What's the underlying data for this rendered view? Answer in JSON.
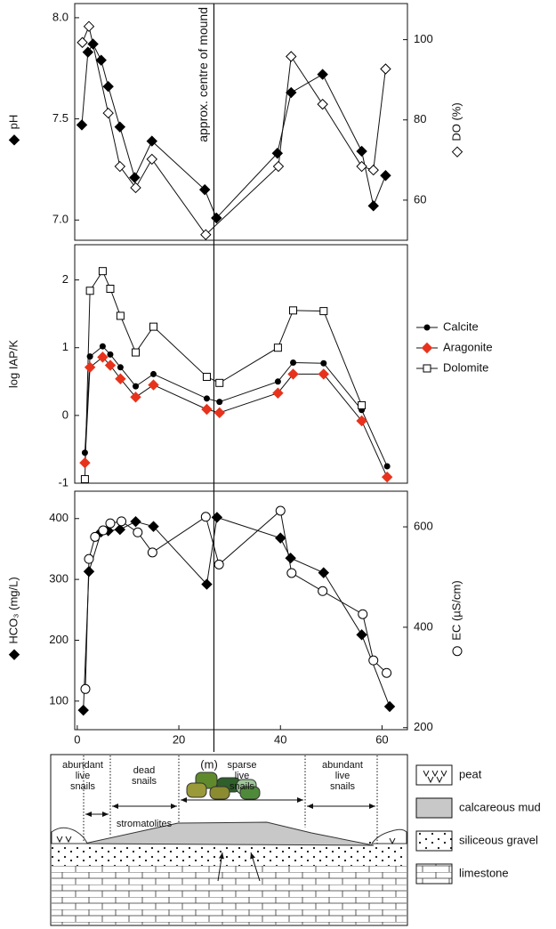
{
  "chart_data": [
    {
      "type": "line",
      "xlim": [
        -0.5,
        65
      ],
      "ylim": [
        6.9,
        8.07
      ],
      "yticks": [
        {
          "value": 7.0,
          "label": "7.0"
        },
        7.5,
        {
          "value": 8.0,
          "label": "8.0"
        }
      ],
      "y2lim": [
        50,
        109
      ],
      "y2ticks": [
        60,
        80,
        100
      ],
      "ylabel": "pH",
      "y2label": "DO (%)",
      "annotation": {
        "text": "approx. centre of mound",
        "x": 26.9
      },
      "series": [
        {
          "marker": "diamond",
          "color": "#000000",
          "axis": "y",
          "x": [
            0.9,
            2.1,
            3.1,
            4.7,
            6.1,
            8.4,
            11.3,
            14.7,
            25.1,
            27.4,
            39.4,
            42.1,
            48.3,
            56,
            58.3,
            60.7
          ],
          "values": [
            7.47,
            7.83,
            7.87,
            7.79,
            7.66,
            7.46,
            7.21,
            7.39,
            7.15,
            7.01,
            7.33,
            7.63,
            7.72,
            7.34,
            7.07,
            7.22
          ]
        },
        {
          "marker": "open-diamond",
          "color": "#000000",
          "axis": "y2",
          "x": [
            1,
            2.3,
            6.1,
            8.4,
            11.5,
            14.7,
            25.3,
            39.6,
            42.1,
            48.3,
            56,
            58.3,
            60.7
          ],
          "values": [
            99.3,
            103.3,
            81.7,
            68.4,
            63.1,
            70.2,
            51.4,
            68.4,
            95.8,
            83.9,
            68.4,
            67.5,
            92.7
          ]
        }
      ]
    },
    {
      "type": "line",
      "xlim": [
        -0.5,
        65
      ],
      "ylim": [
        -1,
        2.52
      ],
      "yticks": [
        -1,
        0,
        1,
        2
      ],
      "ylabel": "log IAP/K",
      "series": [
        {
          "name": "Calcite",
          "marker": "circle",
          "color": "#000000",
          "axis": "y",
          "x": [
            1.5,
            2.5,
            5,
            6.5,
            8.5,
            11.5,
            15,
            25.5,
            28,
            39.5,
            42.5,
            48.5,
            56,
            61
          ],
          "values": [
            -0.55,
            0.87,
            1.02,
            0.9,
            0.71,
            0.43,
            0.61,
            0.25,
            0.2,
            0.5,
            0.78,
            0.77,
            0.08,
            -0.75
          ]
        },
        {
          "name": "Aragonite",
          "marker": "diamond",
          "color": "#e8331c",
          "axis": "y",
          "x": [
            1.5,
            2.5,
            5,
            6.5,
            8.5,
            11.5,
            15,
            25.5,
            28,
            39.5,
            42.5,
            48.5,
            56,
            61
          ],
          "values": [
            -0.7,
            0.71,
            0.86,
            0.74,
            0.54,
            0.27,
            0.45,
            0.09,
            0.04,
            0.33,
            0.61,
            0.61,
            -0.08,
            -0.91
          ]
        },
        {
          "name": "Dolomite",
          "marker": "open-square",
          "color": "#000000",
          "axis": "y",
          "x": [
            1.5,
            2.5,
            5,
            6.5,
            8.5,
            11.5,
            15,
            25.5,
            28,
            39.5,
            42.5,
            48.5,
            56
          ],
          "values": [
            -0.94,
            1.84,
            2.13,
            1.87,
            1.47,
            0.93,
            1.31,
            0.57,
            0.48,
            1.0,
            1.55,
            1.54,
            0.15
          ]
        }
      ]
    },
    {
      "type": "line",
      "xlim": [
        -0.5,
        65
      ],
      "ylim": [
        53,
        445
      ],
      "yticks": [
        100,
        200,
        300,
        400
      ],
      "y2lim": [
        196,
        671
      ],
      "y2ticks": [
        200,
        400,
        600
      ],
      "xticks": [
        0,
        20,
        40,
        60
      ],
      "xlabel": "(m)",
      "ylabel": "HCO₃ (mg/L)",
      "y2label": "EC (µS/cm)",
      "series": [
        {
          "marker": "diamond",
          "color": "#000000",
          "axis": "y",
          "x": [
            1.2,
            2.3,
            4.7,
            6.1,
            8.4,
            11.5,
            15,
            25.5,
            27.5,
            40,
            42,
            48.5,
            56,
            61.5
          ],
          "values": [
            85,
            313,
            378,
            380,
            382,
            395,
            387,
            292,
            402,
            368,
            335,
            311,
            209,
            91
          ]
        },
        {
          "marker": "open-circle",
          "color": "#000000",
          "axis": "y2",
          "x": [
            1.6,
            2.3,
            3.5,
            5.1,
            6.5,
            8.7,
            11.9,
            14.8,
            25.3,
            27.9,
            40,
            42.2,
            48.3,
            56.2,
            58.3,
            60.9
          ],
          "values": [
            277,
            536,
            580,
            593,
            607,
            611,
            589,
            549,
            620,
            525,
            632,
            508,
            472,
            426,
            334,
            309
          ]
        }
      ]
    }
  ],
  "diagram": {
    "zones": [
      {
        "label": [
          "abundant",
          "live",
          "snails"
        ]
      },
      {
        "label": [
          "dead",
          "snails"
        ]
      },
      {
        "label": [
          "sparse",
          "live",
          "snails"
        ]
      },
      {
        "label": [
          "abundant",
          "live",
          "snails"
        ]
      }
    ],
    "stromatolites": "stromatolites",
    "legend": [
      "peat",
      "calcareous mud",
      "siliceous gravel",
      "limestone"
    ]
  }
}
